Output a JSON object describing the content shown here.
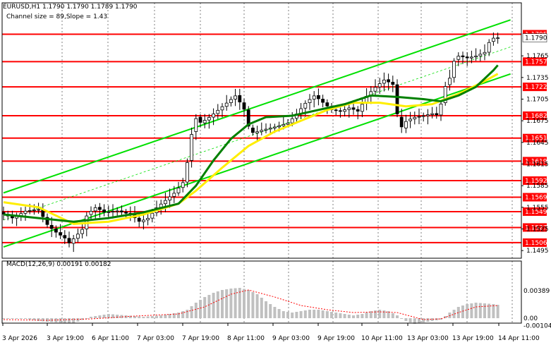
{
  "header": {
    "symbol_line": "EURUSD,H1  1.1790 1.1790 1.1789 1.1790",
    "channel_line": "Channel size = 89,Slope = 1.43"
  },
  "macd": {
    "label": "MACD(12,26,9) 0.00191 0.00182",
    "axis_labels": [
      "0.00389",
      "0.00",
      "-0.00104"
    ]
  },
  "colors": {
    "level_line": "#ff0000",
    "channel": "#00e000",
    "ma_fast": "#ffee00",
    "ma_slow": "#008000",
    "candles": "#000000",
    "macd_hist": "#c0c0c0",
    "macd_signal": "#ff0000"
  },
  "chart_data": {
    "type": "candlestick",
    "symbol": "EURUSD",
    "timeframe": "H1",
    "price_axis_ticks": [
      "1.1765",
      "1.1735",
      "1.1705",
      "1.1675",
      "1.1645",
      "1.1615",
      "1.1585",
      "1.1555",
      "1.1525",
      "1.1495"
    ],
    "horizontal_levels": [
      "1.1795",
      "1.1757",
      "1.1722",
      "1.1682",
      "1.1651",
      "1.1619",
      "1.1592",
      "1.1569",
      "1.1549",
      "1.1527",
      "1.1506"
    ],
    "current_price_tag": "1.1790",
    "time_labels": [
      "3 Apr 2026",
      "3 Apr 19:00",
      "6 Apr 11:00",
      "7 Apr 03:00",
      "7 Apr 19:00",
      "8 Apr 11:00",
      "9 Apr 03:00",
      "9 Apr 19:00",
      "10 Apr 11:00",
      "13 Apr 03:00",
      "13 Apr 19:00",
      "14 Apr 11:00"
    ],
    "price_path": [
      [
        0,
        1.1548
      ],
      [
        3,
        1.154
      ],
      [
        6,
        1.155
      ],
      [
        9,
        1.1552
      ],
      [
        11,
        1.153
      ],
      [
        13,
        1.152
      ],
      [
        15,
        1.1512
      ],
      [
        16,
        1.1505
      ],
      [
        17,
        1.1512
      ],
      [
        19,
        1.1525
      ],
      [
        20,
        1.1545
      ],
      [
        22,
        1.1555
      ],
      [
        24,
        1.1548
      ],
      [
        27,
        1.155
      ],
      [
        30,
        1.1545
      ],
      [
        32,
        1.1535
      ],
      [
        34,
        1.154
      ],
      [
        36,
        1.1555
      ],
      [
        38,
        1.1565
      ],
      [
        40,
        1.1575
      ],
      [
        42,
        1.159
      ],
      [
        43,
        1.162
      ],
      [
        44,
        1.166
      ],
      [
        45,
        1.168
      ],
      [
        46,
        1.1672
      ],
      [
        48,
        1.168
      ],
      [
        50,
        1.169
      ],
      [
        52,
        1.17
      ],
      [
        54,
        1.171
      ],
      [
        56,
        1.169
      ],
      [
        57,
        1.1665
      ],
      [
        58,
        1.1658
      ],
      [
        60,
        1.1662
      ],
      [
        62,
        1.1665
      ],
      [
        64,
        1.1668
      ],
      [
        66,
        1.1672
      ],
      [
        68,
        1.1685
      ],
      [
        70,
        1.17
      ],
      [
        72,
        1.171
      ],
      [
        74,
        1.17
      ],
      [
        76,
        1.169
      ],
      [
        78,
        1.1688
      ],
      [
        80,
        1.1693
      ],
      [
        82,
        1.1688
      ],
      [
        84,
        1.171
      ],
      [
        86,
        1.1722
      ],
      [
        88,
        1.1732
      ],
      [
        90,
        1.1725
      ],
      [
        91,
        1.168
      ],
      [
        92,
        1.1665
      ],
      [
        93,
        1.1675
      ],
      [
        95,
        1.168
      ],
      [
        97,
        1.1682
      ],
      [
        99,
        1.1685
      ],
      [
        100,
        1.1683
      ],
      [
        101,
        1.17
      ],
      [
        102,
        1.1725
      ],
      [
        103,
        1.1735
      ],
      [
        104,
        1.176
      ],
      [
        105,
        1.1765
      ],
      [
        107,
        1.1762
      ],
      [
        109,
        1.1765
      ],
      [
        111,
        1.177
      ],
      [
        112,
        1.1785
      ],
      [
        113,
        1.179
      ]
    ],
    "ma_fast": [
      [
        0,
        1.1562
      ],
      [
        8,
        1.1555
      ],
      [
        16,
        1.1532
      ],
      [
        24,
        1.1535
      ],
      [
        32,
        1.1545
      ],
      [
        40,
        1.156
      ],
      [
        44,
        1.1578
      ],
      [
        50,
        1.161
      ],
      [
        56,
        1.164
      ],
      [
        62,
        1.166
      ],
      [
        68,
        1.1675
      ],
      [
        74,
        1.169
      ],
      [
        80,
        1.17
      ],
      [
        86,
        1.17
      ],
      [
        92,
        1.1695
      ],
      [
        98,
        1.1698
      ],
      [
        104,
        1.1712
      ],
      [
        110,
        1.173
      ],
      [
        113,
        1.174
      ]
    ],
    "ma_slow": [
      [
        0,
        1.1545
      ],
      [
        8,
        1.154
      ],
      [
        16,
        1.1535
      ],
      [
        24,
        1.154
      ],
      [
        32,
        1.1548
      ],
      [
        40,
        1.156
      ],
      [
        44,
        1.1585
      ],
      [
        48,
        1.162
      ],
      [
        52,
        1.165
      ],
      [
        56,
        1.167
      ],
      [
        60,
        1.168
      ],
      [
        66,
        1.1682
      ],
      [
        72,
        1.169
      ],
      [
        78,
        1.1698
      ],
      [
        84,
        1.171
      ],
      [
        90,
        1.1708
      ],
      [
        96,
        1.1705
      ],
      [
        100,
        1.1702
      ],
      [
        104,
        1.171
      ],
      [
        108,
        1.1722
      ],
      [
        112,
        1.1745
      ],
      [
        113,
        1.1752
      ]
    ],
    "channel": {
      "upper": [
        [
          0,
          1.1575
        ],
        [
          113,
          1.181
        ]
      ],
      "lower": [
        [
          0,
          1.15
        ],
        [
          113,
          1.1735
        ]
      ]
    },
    "macd_histogram": [
      [
        0,
        -0.0001
      ],
      [
        4,
        0.0
      ],
      [
        8,
        -0.0004
      ],
      [
        12,
        -0.0006
      ],
      [
        16,
        -0.0007
      ],
      [
        20,
        0.0002
      ],
      [
        24,
        0.0006
      ],
      [
        28,
        0.0004
      ],
      [
        32,
        0.0002
      ],
      [
        36,
        0.0004
      ],
      [
        40,
        0.0008
      ],
      [
        42,
        0.0012
      ],
      [
        44,
        0.0022
      ],
      [
        46,
        0.003
      ],
      [
        48,
        0.0036
      ],
      [
        50,
        0.004
      ],
      [
        52,
        0.0042
      ],
      [
        54,
        0.0043
      ],
      [
        56,
        0.004
      ],
      [
        58,
        0.0034
      ],
      [
        60,
        0.0024
      ],
      [
        62,
        0.0016
      ],
      [
        64,
        0.001
      ],
      [
        66,
        0.0008
      ],
      [
        68,
        0.001
      ],
      [
        70,
        0.0012
      ],
      [
        72,
        0.0012
      ],
      [
        74,
        0.001
      ],
      [
        76,
        0.0008
      ],
      [
        78,
        0.0006
      ],
      [
        80,
        0.0004
      ],
      [
        82,
        0.0006
      ],
      [
        84,
        0.001
      ],
      [
        86,
        0.0012
      ],
      [
        88,
        0.001
      ],
      [
        90,
        0.0004
      ],
      [
        92,
        -0.0004
      ],
      [
        94,
        -0.0008
      ],
      [
        96,
        -0.0006
      ],
      [
        98,
        -0.0004
      ],
      [
        100,
        -0.0002
      ],
      [
        102,
        0.0008
      ],
      [
        104,
        0.0016
      ],
      [
        106,
        0.002
      ],
      [
        108,
        0.0022
      ],
      [
        110,
        0.0021
      ],
      [
        112,
        0.002
      ],
      [
        113,
        0.0019
      ]
    ],
    "macd_signal": [
      [
        0,
        -0.0002
      ],
      [
        10,
        -0.0003
      ],
      [
        20,
        -0.0001
      ],
      [
        30,
        0.0003
      ],
      [
        40,
        0.0006
      ],
      [
        46,
        0.0016
      ],
      [
        52,
        0.0034
      ],
      [
        56,
        0.004
      ],
      [
        62,
        0.003
      ],
      [
        68,
        0.0018
      ],
      [
        74,
        0.0012
      ],
      [
        80,
        0.0008
      ],
      [
        86,
        0.0009
      ],
      [
        90,
        0.0008
      ],
      [
        96,
        -0.0002
      ],
      [
        100,
        -0.0001
      ],
      [
        104,
        0.0008
      ],
      [
        108,
        0.0016
      ],
      [
        113,
        0.0018
      ]
    ]
  }
}
